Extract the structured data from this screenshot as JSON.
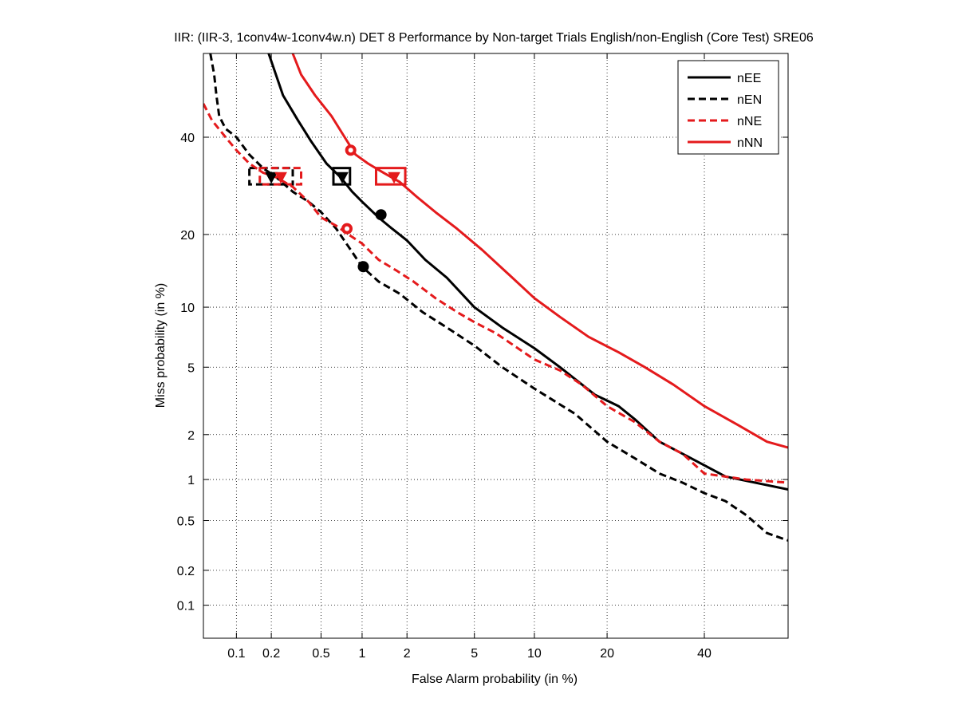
{
  "chart_data": {
    "type": "line",
    "title": "IIR: (IIR-3, 1conv4w-1conv4w.n) DET 8 Performance by Non-target Trials English/non-English (Core Test) SRE06",
    "xlabel": "False Alarm probability (in %)",
    "ylabel": "Miss probability (in %)",
    "x_scale": "probit",
    "y_scale": "probit",
    "xlim": [
      0.05,
      60
    ],
    "ylim": [
      0.05,
      60
    ],
    "grid": true,
    "legend_position": "top-right",
    "x_ticks": [
      {
        "value": 0.1,
        "label": "0.1"
      },
      {
        "value": 0.2,
        "label": "0.2"
      },
      {
        "value": 0.5,
        "label": "0.5"
      },
      {
        "value": 1,
        "label": "1"
      },
      {
        "value": 2,
        "label": "2"
      },
      {
        "value": 5,
        "label": "5"
      },
      {
        "value": 10,
        "label": "10"
      },
      {
        "value": 20,
        "label": "20"
      },
      {
        "value": 40,
        "label": "40"
      }
    ],
    "y_ticks": [
      {
        "value": 0.1,
        "label": "0.1"
      },
      {
        "value": 0.2,
        "label": "0.2"
      },
      {
        "value": 0.5,
        "label": "0.5"
      },
      {
        "value": 1,
        "label": "1"
      },
      {
        "value": 2,
        "label": "2"
      },
      {
        "value": 5,
        "label": "5"
      },
      {
        "value": 10,
        "label": "10"
      },
      {
        "value": 20,
        "label": "20"
      },
      {
        "value": 40,
        "label": "40"
      }
    ],
    "series": [
      {
        "name": "nEE",
        "color": "#000000",
        "dash": "solid",
        "x": [
          0.19,
          0.25,
          0.33,
          0.42,
          0.55,
          0.7,
          0.85,
          1.0,
          1.3,
          1.6,
          2.0,
          2.6,
          3.5,
          5.0,
          7.0,
          10.0,
          13.0,
          18.0,
          22.0,
          25.0,
          30.0,
          35.0,
          45.0,
          60.0
        ],
        "y": [
          60.0,
          50.0,
          44.0,
          39.0,
          34.0,
          31.0,
          28.0,
          26.0,
          23.0,
          21.0,
          19.0,
          16.0,
          13.5,
          10.0,
          8.0,
          6.3,
          5.0,
          3.5,
          3.0,
          2.5,
          1.8,
          1.5,
          1.05,
          0.85
        ]
      },
      {
        "name": "nEN",
        "color": "#000000",
        "dash": "dashed",
        "x": [
          0.058,
          0.063,
          0.066,
          0.07,
          0.08,
          0.1,
          0.13,
          0.17,
          0.22,
          0.3,
          0.4,
          0.5,
          0.65,
          0.8,
          1.0,
          1.3,
          1.8,
          2.5,
          3.5,
          5.0,
          7.0,
          10.0,
          15.0,
          20.0,
          25.0,
          30.0,
          35.0,
          40.0,
          45.0,
          50.0,
          55.0,
          60.0
        ],
        "y": [
          60.0,
          55.0,
          50.0,
          45.0,
          42.0,
          40.0,
          36.0,
          33.0,
          31.0,
          28.0,
          26.0,
          24.0,
          21.0,
          18.0,
          15.0,
          13.0,
          11.5,
          9.5,
          8.0,
          6.5,
          5.0,
          3.8,
          2.7,
          1.8,
          1.4,
          1.1,
          0.95,
          0.8,
          0.7,
          0.55,
          0.4,
          0.35
        ]
      },
      {
        "name": "nNE",
        "color": "#e41a1c",
        "dash": "dashed",
        "x": [
          0.05,
          0.06,
          0.08,
          0.1,
          0.13,
          0.17,
          0.22,
          0.3,
          0.4,
          0.5,
          0.65,
          0.8,
          1.0,
          1.3,
          1.7,
          2.2,
          3.0,
          4.0,
          5.0,
          6.5,
          8.0,
          10.0,
          13.0,
          16.0,
          20.0,
          25.0,
          30.0,
          35.0,
          40.0,
          50.0,
          60.0
        ],
        "y": [
          48.0,
          44.0,
          40.0,
          37.0,
          34.0,
          32.0,
          31.0,
          29.0,
          26.0,
          23.0,
          21.5,
          20.0,
          18.5,
          16.0,
          14.5,
          13.0,
          11.0,
          9.5,
          8.5,
          7.5,
          6.5,
          5.5,
          4.8,
          4.0,
          3.0,
          2.4,
          1.8,
          1.5,
          1.1,
          1.0,
          0.95
        ]
      },
      {
        "name": "nNN",
        "color": "#e41a1c",
        "dash": "solid",
        "x": [
          0.3,
          0.35,
          0.45,
          0.6,
          0.75,
          0.9,
          1.1,
          1.4,
          1.8,
          2.3,
          3.0,
          4.0,
          5.5,
          7.5,
          10.0,
          13.0,
          17.0,
          22.0,
          27.0,
          33.0,
          40.0,
          48.0,
          55.0,
          60.0
        ],
        "y": [
          60.0,
          55.0,
          50.0,
          45.0,
          40.0,
          36.0,
          34.0,
          32.0,
          30.0,
          27.0,
          24.0,
          21.0,
          17.5,
          14.0,
          11.0,
          9.0,
          7.2,
          6.0,
          5.0,
          4.0,
          3.0,
          2.3,
          1.8,
          1.65
        ]
      }
    ],
    "markers": [
      {
        "series": "nEE",
        "kind": "circle",
        "x": 1.35,
        "y": 23.5
      },
      {
        "series": "nEN",
        "kind": "circle",
        "x": 1.02,
        "y": 15.0
      },
      {
        "series": "nNE",
        "kind": "circle",
        "x": 0.78,
        "y": 21.0
      },
      {
        "series": "nNN",
        "kind": "circle",
        "x": 0.83,
        "y": 37.0
      },
      {
        "series": "nEE",
        "kind": "triangle",
        "x": 0.72,
        "y": 31.0
      },
      {
        "series": "nEN",
        "kind": "triangle",
        "x": 0.2,
        "y": 31.0
      },
      {
        "series": "nNE",
        "kind": "triangle",
        "x": 0.24,
        "y": 31.0
      },
      {
        "series": "nNN",
        "kind": "triangle",
        "x": 1.65,
        "y": 31.0
      }
    ],
    "confidence_boxes": [
      {
        "series": "nEE",
        "x_range": [
          0.62,
          0.82
        ],
        "y_range": [
          29.5,
          33.0
        ]
      },
      {
        "series": "nEN",
        "x_range": [
          0.13,
          0.3
        ],
        "y_range": [
          29.5,
          33.0
        ]
      },
      {
        "series": "nNE",
        "x_range": [
          0.16,
          0.35
        ],
        "y_range": [
          29.5,
          33.0
        ]
      },
      {
        "series": "nNN",
        "x_range": [
          1.25,
          1.95
        ],
        "y_range": [
          29.5,
          33.0
        ]
      }
    ]
  }
}
